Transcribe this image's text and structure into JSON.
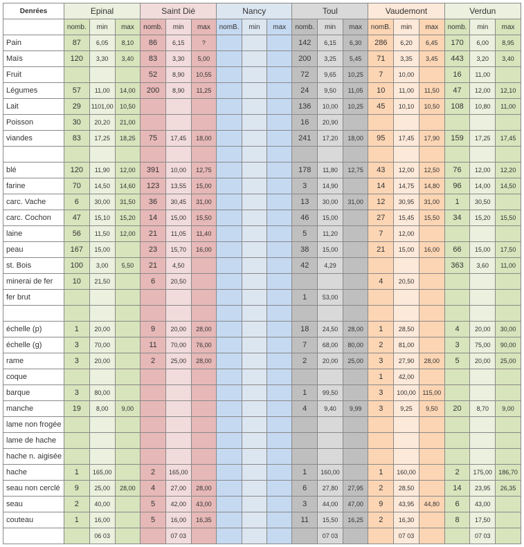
{
  "header": {
    "label": "Denrées",
    "sub": [
      "nomb.",
      "min",
      "max",
      "nomb.",
      "min",
      "max",
      "nomB.",
      "min",
      "max",
      "nomb.",
      "min",
      "max",
      "nomB.",
      "min",
      "max",
      "nomb.",
      "min",
      "max"
    ]
  },
  "cities": [
    {
      "name": "Epinal",
      "key": "epinal"
    },
    {
      "name": "Saint Dié",
      "key": "stdie"
    },
    {
      "name": "Nancy",
      "key": "nancy"
    },
    {
      "name": "Toul",
      "key": "toul"
    },
    {
      "name": "Vaudemont",
      "key": "vaud"
    },
    {
      "name": "Verdun",
      "key": "verd"
    }
  ],
  "rows": [
    {
      "label": "Pain",
      "v": [
        "87",
        "6,05",
        "8,10",
        "86",
        "6,15",
        "?",
        "",
        "",
        "",
        "142",
        "6,15",
        "6,30",
        "286",
        "6,20",
        "6,45",
        "170",
        "6,00",
        "8,95"
      ]
    },
    {
      "label": "Maïs",
      "v": [
        "120",
        "3,30",
        "3,40",
        "83",
        "3,30",
        "5,00",
        "",
        "",
        "",
        "200",
        "3,25",
        "5,45",
        "71",
        "3,35",
        "3,45",
        "443",
        "3,20",
        "3,40"
      ]
    },
    {
      "label": "Fruit",
      "v": [
        "",
        "",
        "",
        "52",
        "8,90",
        "10,55",
        "",
        "",
        "",
        "72",
        "9,65",
        "10,25",
        "7",
        "10,00",
        "",
        "16",
        "11,00",
        ""
      ]
    },
    {
      "label": "Légumes",
      "v": [
        "57",
        "11,00",
        "14,00",
        "200",
        "8,90",
        "11,25",
        "",
        "",
        "",
        "24",
        "9,50",
        "11,05",
        "10",
        "11,00",
        "11,50",
        "47",
        "12,00",
        "12,10"
      ]
    },
    {
      "label": "Lait",
      "v": [
        "29",
        "1101,00",
        "10,50",
        "",
        "",
        "",
        "",
        "",
        "",
        "136",
        "10,00",
        "10,25",
        "45",
        "10,10",
        "10,50",
        "108",
        "10,80",
        "11,00"
      ]
    },
    {
      "label": "Poisson",
      "v": [
        "30",
        "20,20",
        "21,00",
        "",
        "",
        "",
        "",
        "",
        "",
        "16",
        "20,90",
        "",
        "",
        "",
        "",
        "",
        "",
        ""
      ]
    },
    {
      "label": "viandes",
      "v": [
        "83",
        "17,25",
        "18,25",
        "75",
        "17,45",
        "18,00",
        "",
        "",
        "",
        "241",
        "17,20",
        "18,00",
        "95",
        "17,45",
        "17,90",
        "159",
        "17,25",
        "17,45"
      ]
    },
    {
      "label": "",
      "v": [
        "",
        "",
        "",
        "",
        "",
        "",
        "",
        "",
        "",
        "",
        "",
        "",
        "",
        "",
        "",
        "",
        "",
        ""
      ]
    },
    {
      "label": "blé",
      "v": [
        "120",
        "11,90",
        "12,00",
        "391",
        "10,00",
        "12,75",
        "",
        "",
        "",
        "178",
        "11,80",
        "12,75",
        "43",
        "12,00",
        "12,50",
        "76",
        "12,00",
        "12,20"
      ]
    },
    {
      "label": "farine",
      "v": [
        "70",
        "14,50",
        "14,60",
        "123",
        "13,55",
        "15,00",
        "",
        "",
        "",
        "3",
        "14,90",
        "",
        "14",
        "14,75",
        "14,80",
        "96",
        "14,00",
        "14,50"
      ]
    },
    {
      "label": "carc. Vache",
      "v": [
        "6",
        "30,00",
        "31,50",
        "36",
        "30,45",
        "31,00",
        "",
        "",
        "",
        "13",
        "30,00",
        "31,00",
        "12",
        "30,95",
        "31,00",
        "1",
        "30,50",
        ""
      ]
    },
    {
      "label": "carc. Cochon",
      "v": [
        "47",
        "15,10",
        "15,20",
        "14",
        "15,00",
        "15,50",
        "",
        "",
        "",
        "46",
        "15,00",
        "",
        "27",
        "15,45",
        "15,50",
        "34",
        "15,20",
        "15,50"
      ]
    },
    {
      "label": "laine",
      "v": [
        "56",
        "11,50",
        "12,00",
        "21",
        "11,05",
        "11,40",
        "",
        "",
        "",
        "5",
        "11,20",
        "",
        "7",
        "12,00",
        "",
        "",
        "",
        ""
      ]
    },
    {
      "label": "peau",
      "v": [
        "167",
        "15,00",
        "",
        "23",
        "15,70",
        "16,00",
        "",
        "",
        "",
        "38",
        "15,00",
        "",
        "21",
        "15,00",
        "16,00",
        "66",
        "15,00",
        "17,50"
      ]
    },
    {
      "label": "st. Bois",
      "v": [
        "100",
        "3,00",
        "5,50",
        "21",
        "4,50",
        "",
        "",
        "",
        "",
        "42",
        "4,29",
        "",
        "",
        "",
        "",
        "363",
        "3,60",
        "11,00"
      ]
    },
    {
      "label": "minerai de fer",
      "v": [
        "10",
        "21,50",
        "",
        "6",
        "20,50",
        "",
        "",
        "",
        "",
        "",
        "",
        "",
        "4",
        "20,50",
        "",
        "",
        "",
        ""
      ]
    },
    {
      "label": "fer brut",
      "v": [
        "",
        "",
        "",
        "",
        "",
        "",
        "",
        "",
        "",
        "1",
        "53,00",
        "",
        "",
        "",
        "",
        "",
        "",
        ""
      ]
    },
    {
      "label": "",
      "v": [
        "",
        "",
        "",
        "",
        "",
        "",
        "",
        "",
        "",
        "",
        "",
        "",
        "",
        "",
        "",
        "",
        "",
        ""
      ]
    },
    {
      "label": "échelle (p)",
      "v": [
        "1",
        "20,00",
        "",
        "9",
        "20,00",
        "28,00",
        "",
        "",
        "",
        "18",
        "24,50",
        "28,00",
        "1",
        "28,50",
        "",
        "4",
        "20,00",
        "30,00"
      ]
    },
    {
      "label": "échelle (g)",
      "v": [
        "3",
        "70,00",
        "",
        "11",
        "70,00",
        "76,00",
        "",
        "",
        "",
        "7",
        "68,00",
        "80,00",
        "2",
        "81,00",
        "",
        "3",
        "75,00",
        "90,00"
      ]
    },
    {
      "label": "rame",
      "v": [
        "3",
        "20,00",
        "",
        "2",
        "25,00",
        "28,00",
        "",
        "",
        "",
        "2",
        "20,00",
        "25,00",
        "3",
        "27,90",
        "28,00",
        "5",
        "20,00",
        "25,00"
      ]
    },
    {
      "label": "coque",
      "v": [
        "",
        "",
        "",
        "",
        "",
        "",
        "",
        "",
        "",
        "",
        "",
        "",
        "1",
        "42,00",
        "",
        "",
        "",
        ""
      ]
    },
    {
      "label": "barque",
      "v": [
        "3",
        "80,00",
        "",
        "",
        "",
        "",
        "",
        "",
        "",
        "1",
        "99,50",
        "",
        "3",
        "100,00",
        "115,00",
        "",
        "",
        ""
      ]
    },
    {
      "label": "manche",
      "v": [
        "19",
        "8,00",
        "9,00",
        "",
        "",
        "",
        "",
        "",
        "",
        "4",
        "9,40",
        "9,99",
        "3",
        "9,25",
        "9,50",
        "20",
        "8,70",
        "9,00"
      ]
    },
    {
      "label": "lame non frogée",
      "v": [
        "",
        "",
        "",
        "",
        "",
        "",
        "",
        "",
        "",
        "",
        "",
        "",
        "",
        "",
        "",
        "",
        "",
        ""
      ]
    },
    {
      "label": "lame de hache",
      "v": [
        "",
        "",
        "",
        "",
        "",
        "",
        "",
        "",
        "",
        "",
        "",
        "",
        "",
        "",
        "",
        "",
        "",
        ""
      ]
    },
    {
      "label": "hache n. aigisée",
      "v": [
        "",
        "",
        "",
        "",
        "",
        "",
        "",
        "",
        "",
        "",
        "",
        "",
        "",
        "",
        "",
        "",
        "",
        ""
      ]
    },
    {
      "label": "hache",
      "v": [
        "1",
        "165,00",
        "",
        "2",
        "165,00",
        "",
        "",
        "",
        "",
        "1",
        "160,00",
        "",
        "1",
        "160,00",
        "",
        "2",
        "175,00",
        "186,70"
      ]
    },
    {
      "label": "seau non cerclé",
      "v": [
        "9",
        "25,00",
        "28,00",
        "4",
        "27,00",
        "28,00",
        "",
        "",
        "",
        "6",
        "27,80",
        "27,95",
        "2",
        "28,50",
        "",
        "14",
        "23,95",
        "26,35"
      ]
    },
    {
      "label": "seau",
      "v": [
        "2",
        "40,00",
        "",
        "5",
        "42,00",
        "43,00",
        "",
        "",
        "",
        "3",
        "44,00",
        "47,00",
        "9",
        "43,95",
        "44,80",
        "6",
        "43,00",
        ""
      ]
    },
    {
      "label": "couteau",
      "v": [
        "1",
        "16,00",
        "",
        "5",
        "16,00",
        "16,35",
        "",
        "",
        "",
        "11",
        "15,50",
        "16,25",
        "2",
        "16,30",
        "",
        "8",
        "17,50",
        ""
      ]
    },
    {
      "label": "",
      "v": [
        "",
        "06 03",
        "",
        "",
        "07 03",
        "",
        "",
        "",
        "",
        "",
        "07 03",
        "",
        "",
        "07 03",
        "",
        "",
        "07 03",
        ""
      ]
    }
  ]
}
